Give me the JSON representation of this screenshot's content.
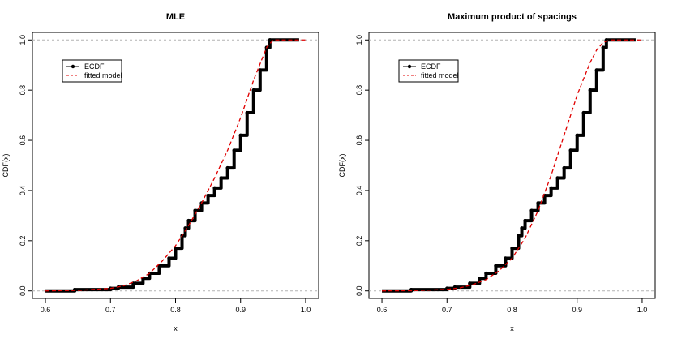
{
  "chart_data": [
    {
      "type": "line",
      "title": "MLE",
      "xlabel": "x",
      "ylabel": "CDF(x)",
      "xlim": [
        0.58,
        1.02
      ],
      "ylim": [
        -0.03,
        1.03
      ],
      "xticks": [
        "0.6",
        "0.7",
        "0.8",
        "0.9",
        "1.0"
      ],
      "yticks": [
        "0.0",
        "0.2",
        "0.4",
        "0.6",
        "0.8",
        "1.0"
      ],
      "reference_lines": [
        0,
        1
      ],
      "legend_position": "top-left",
      "legend": [
        "ECDF",
        "fitted model"
      ],
      "series": [
        {
          "name": "ECDF",
          "style": "black step line with points",
          "x": [
            0.6,
            0.645,
            0.7,
            0.712,
            0.735,
            0.75,
            0.76,
            0.775,
            0.79,
            0.8,
            0.81,
            0.815,
            0.82,
            0.83,
            0.84,
            0.85,
            0.86,
            0.87,
            0.88,
            0.89,
            0.9,
            0.91,
            0.92,
            0.93,
            0.94,
            0.945,
            0.99
          ],
          "y": [
            0.0,
            0.005,
            0.01,
            0.015,
            0.03,
            0.05,
            0.07,
            0.1,
            0.13,
            0.17,
            0.22,
            0.25,
            0.28,
            0.32,
            0.35,
            0.38,
            0.41,
            0.45,
            0.49,
            0.56,
            0.62,
            0.71,
            0.8,
            0.88,
            0.97,
            1.0,
            1.0
          ]
        },
        {
          "name": "fitted model",
          "style": "red dashed line",
          "x": [
            0.6,
            0.65,
            0.7,
            0.72,
            0.74,
            0.76,
            0.78,
            0.8,
            0.82,
            0.84,
            0.86,
            0.88,
            0.9,
            0.92,
            0.94,
            0.95,
            1.0
          ],
          "y": [
            0.0,
            0.002,
            0.01,
            0.02,
            0.04,
            0.07,
            0.12,
            0.18,
            0.26,
            0.35,
            0.45,
            0.56,
            0.69,
            0.84,
            0.97,
            1.0,
            1.0
          ]
        }
      ]
    },
    {
      "type": "line",
      "title": "Maximum product of spacings",
      "xlabel": "x",
      "ylabel": "CDF(x)",
      "xlim": [
        0.58,
        1.02
      ],
      "ylim": [
        -0.03,
        1.03
      ],
      "xticks": [
        "0.6",
        "0.7",
        "0.8",
        "0.9",
        "1.0"
      ],
      "yticks": [
        "0.0",
        "0.2",
        "0.4",
        "0.6",
        "0.8",
        "1.0"
      ],
      "reference_lines": [
        0,
        1
      ],
      "legend_position": "top-left",
      "legend": [
        "ECDF",
        "fitted model"
      ],
      "series": [
        {
          "name": "ECDF",
          "style": "black step line with points",
          "x": [
            0.6,
            0.645,
            0.7,
            0.712,
            0.735,
            0.75,
            0.76,
            0.775,
            0.79,
            0.8,
            0.81,
            0.815,
            0.82,
            0.83,
            0.84,
            0.85,
            0.86,
            0.87,
            0.88,
            0.89,
            0.9,
            0.91,
            0.92,
            0.93,
            0.94,
            0.945,
            0.99
          ],
          "y": [
            0.0,
            0.005,
            0.01,
            0.015,
            0.03,
            0.05,
            0.07,
            0.1,
            0.13,
            0.17,
            0.22,
            0.25,
            0.28,
            0.32,
            0.35,
            0.38,
            0.41,
            0.45,
            0.49,
            0.56,
            0.62,
            0.71,
            0.8,
            0.88,
            0.97,
            1.0,
            1.0
          ]
        },
        {
          "name": "fitted model",
          "style": "red dashed line",
          "x": [
            0.6,
            0.65,
            0.7,
            0.72,
            0.74,
            0.76,
            0.78,
            0.8,
            0.82,
            0.84,
            0.86,
            0.88,
            0.9,
            0.92,
            0.93,
            0.94,
            0.95,
            1.0
          ],
          "y": [
            0.0,
            0.001,
            0.006,
            0.012,
            0.025,
            0.045,
            0.08,
            0.13,
            0.21,
            0.32,
            0.46,
            0.62,
            0.78,
            0.91,
            0.96,
            0.99,
            1.0,
            1.0
          ]
        }
      ]
    }
  ],
  "colors": {
    "ecdf": "#000000",
    "fitted": "#e00000",
    "reference_line": "#b3b3b3"
  }
}
